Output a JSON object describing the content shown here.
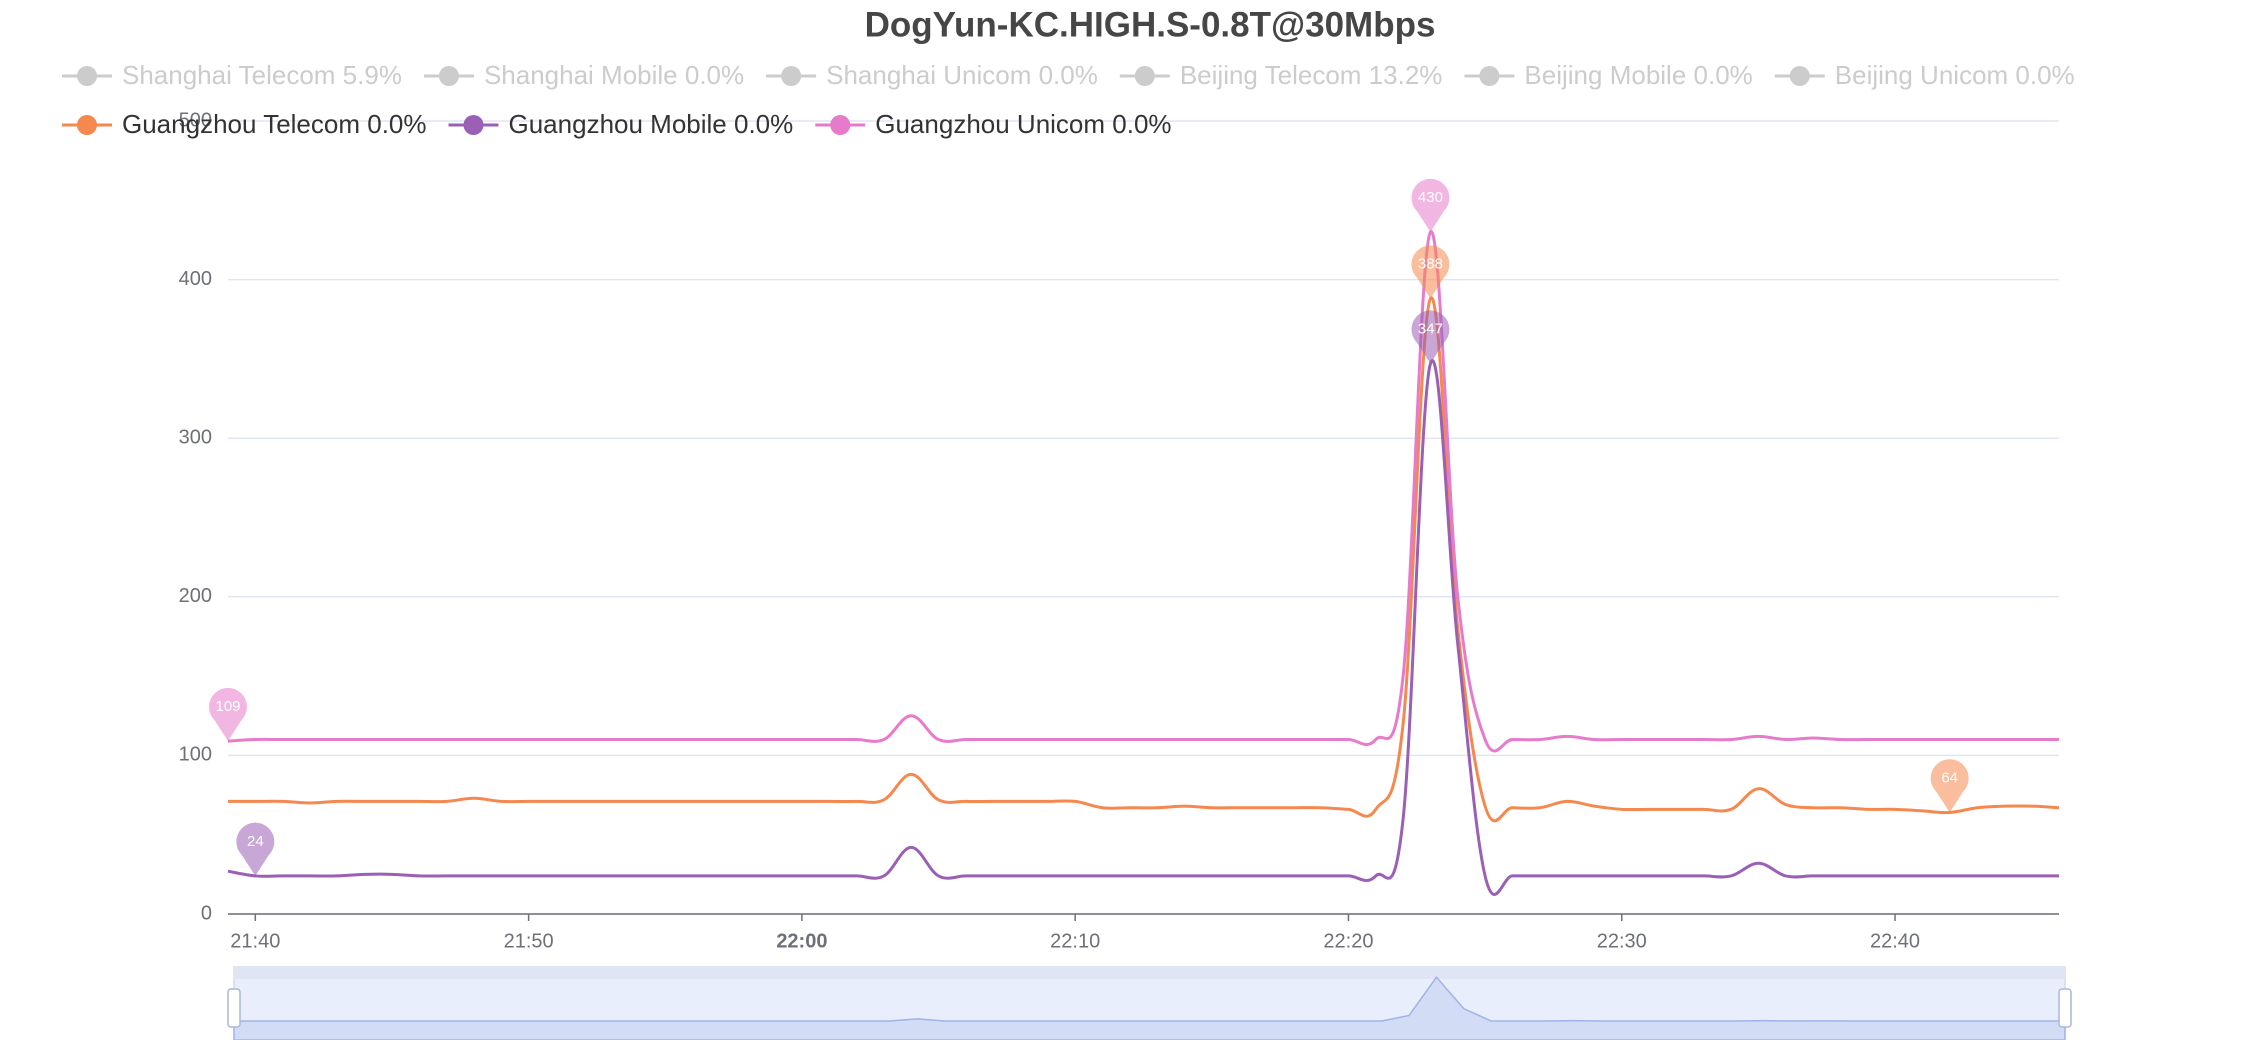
{
  "chart_data": {
    "type": "line",
    "title": "DogYun-KC.HIGH.S-0.8T@30Mbps",
    "hidden_series": [
      {
        "name": "Shanghai Telecom 5.9%"
      },
      {
        "name": "Shanghai Mobile 0.0%"
      },
      {
        "name": "Shanghai Unicom 0.0%"
      },
      {
        "name": "Beijing Telecom 13.2%"
      },
      {
        "name": "Beijing Mobile 0.0%"
      },
      {
        "name": "Beijing Unicom 0.0%"
      }
    ],
    "x": [
      "21:39",
      "21:40",
      "21:41",
      "21:42",
      "21:43",
      "21:44",
      "21:45",
      "21:46",
      "21:47",
      "21:48",
      "21:49",
      "21:50",
      "21:51",
      "21:52",
      "21:53",
      "21:54",
      "21:55",
      "21:56",
      "21:57",
      "21:58",
      "21:59",
      "22:00",
      "22:01",
      "22:02",
      "22:03",
      "22:04",
      "22:05",
      "22:06",
      "22:07",
      "22:08",
      "22:09",
      "22:10",
      "22:11",
      "22:12",
      "22:13",
      "22:14",
      "22:15",
      "22:16",
      "22:17",
      "22:18",
      "22:19",
      "22:20",
      "22:21",
      "22:22",
      "22:23",
      "22:24",
      "22:25",
      "22:26",
      "22:27",
      "22:28",
      "22:29",
      "22:30",
      "22:31",
      "22:32",
      "22:33",
      "22:34",
      "22:35",
      "22:36",
      "22:37",
      "22:38",
      "22:39",
      "22:40",
      "22:41",
      "22:42",
      "22:43",
      "22:44",
      "22:45",
      "22:46"
    ],
    "series": [
      {
        "name": "Guangzhou Telecom 0.0%",
        "color": "#f5884e",
        "values": [
          71,
          71,
          71,
          70,
          71,
          71,
          71,
          71,
          71,
          73,
          71,
          71,
          71,
          71,
          71,
          71,
          71,
          71,
          71,
          71,
          71,
          71,
          71,
          71,
          72,
          88,
          72,
          71,
          71,
          71,
          71,
          71,
          67,
          67,
          67,
          68,
          67,
          67,
          67,
          67,
          67,
          66,
          66,
          120,
          388,
          180,
          68,
          67,
          67,
          71,
          68,
          66,
          66,
          66,
          66,
          66,
          79,
          69,
          67,
          67,
          66,
          66,
          65,
          64,
          67,
          68,
          68,
          67
        ],
        "mark_points": [
          {
            "x": "22:23",
            "value": 388
          },
          {
            "x": "22:42",
            "value": 64
          }
        ]
      },
      {
        "name": "Guangzhou Mobile 0.0%",
        "color": "#9b5fb5",
        "values": [
          27,
          24,
          24,
          24,
          24,
          25,
          25,
          24,
          24,
          24,
          24,
          24,
          24,
          24,
          24,
          24,
          24,
          24,
          24,
          24,
          24,
          24,
          24,
          24,
          24,
          42,
          24,
          24,
          24,
          24,
          24,
          24,
          24,
          24,
          24,
          24,
          24,
          24,
          24,
          24,
          24,
          24,
          24,
          60,
          347,
          170,
          24,
          24,
          24,
          24,
          24,
          24,
          24,
          24,
          24,
          24,
          32,
          24,
          24,
          24,
          24,
          24,
          24,
          24,
          24,
          24,
          24,
          24
        ],
        "mark_points": [
          {
            "x": "22:23",
            "value": 347
          },
          {
            "x": "21:40",
            "value": 24
          }
        ]
      },
      {
        "name": "Guangzhou Unicom 0.0%",
        "color": "#e67bcb",
        "values": [
          109,
          110,
          110,
          110,
          110,
          110,
          110,
          110,
          110,
          110,
          110,
          110,
          110,
          110,
          110,
          110,
          110,
          110,
          110,
          110,
          110,
          110,
          110,
          110,
          110,
          125,
          110,
          110,
          110,
          110,
          110,
          110,
          110,
          110,
          110,
          110,
          110,
          110,
          110,
          110,
          110,
          110,
          110,
          150,
          430,
          200,
          110,
          110,
          110,
          112,
          110,
          110,
          110,
          110,
          110,
          110,
          112,
          110,
          111,
          110,
          110,
          110,
          110,
          110,
          110,
          110,
          110,
          110
        ],
        "mark_points": [
          {
            "x": "22:23",
            "value": 430
          },
          {
            "x": "21:39",
            "value": 109
          }
        ]
      }
    ],
    "xlim": [
      "21:39",
      "22:46"
    ],
    "xticks": [
      "21:40",
      "21:50",
      "22:00",
      "22:10",
      "22:20",
      "22:30",
      "22:40"
    ],
    "ylim": [
      0,
      500
    ],
    "yticks": [
      0,
      100,
      200,
      300,
      400,
      500
    ],
    "grid": true
  }
}
